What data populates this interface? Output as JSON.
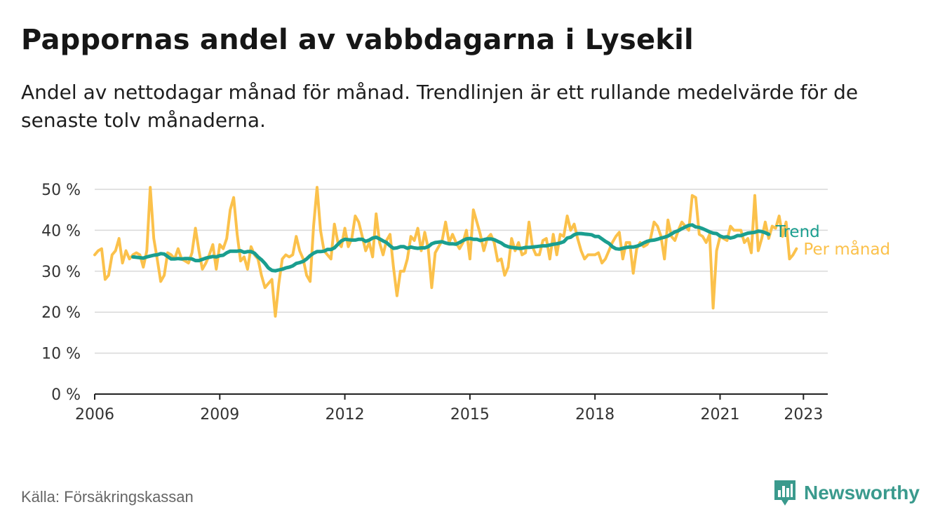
{
  "title": "Pappornas andel av vabbdagarna i Lysekil",
  "subtitle": "Andel av nettodagar månad för månad. Trendlinjen är ett rullande medelvärde för de senaste tolv månaderna.",
  "source": "Källa: Försäkringskassan",
  "brand": {
    "name": "Newsworthy",
    "icon": "newsworthy-logo-icon",
    "color": "#3a9a8d"
  },
  "chart_data": {
    "type": "line",
    "ylim": [
      0,
      50
    ],
    "yticks": [
      0,
      10,
      20,
      30,
      40,
      50
    ],
    "ytick_labels": [
      "0 %",
      "10 %",
      "20 %",
      "30 %",
      "40 %",
      "50 %"
    ],
    "xlim": [
      "2006-01",
      "2023-08"
    ],
    "xticks": [
      "2006-01",
      "2009-01",
      "2012-01",
      "2015-01",
      "2018-01",
      "2021-01",
      "2023-01"
    ],
    "xtick_labels": [
      "2006",
      "2009",
      "2012",
      "2015",
      "2018",
      "2021",
      "2023"
    ],
    "grid": true,
    "legend": "direct-labels-right",
    "series": [
      {
        "name": "Per månad",
        "color": "#fbc14b",
        "start": "2006-01",
        "values": [
          34,
          35,
          35.5,
          28,
          29,
          34,
          35,
          38,
          32,
          35,
          33,
          34,
          34.5,
          34,
          31,
          35,
          50.5,
          38,
          33,
          27.5,
          29,
          34.5,
          34,
          33,
          35.5,
          33,
          32.5,
          32,
          34.5,
          40.5,
          35,
          30.5,
          32,
          34,
          36.5,
          30.5,
          36.5,
          35.5,
          38,
          45,
          48,
          39,
          32.5,
          33.5,
          30.5,
          36,
          34,
          33,
          29,
          26,
          27,
          28,
          19,
          27,
          33,
          34,
          33.5,
          34,
          38.5,
          35,
          33,
          29,
          27.5,
          41,
          50.5,
          40,
          35,
          34,
          33,
          41.5,
          37,
          36,
          40.5,
          36,
          38,
          43.5,
          42,
          38.5,
          35,
          37,
          33.5,
          44,
          37,
          34,
          37.5,
          39,
          31,
          24,
          30,
          30,
          33,
          38.5,
          37.5,
          40.5,
          35,
          39.5,
          35.5,
          26,
          34.5,
          36,
          37.5,
          42,
          37,
          39,
          37,
          35.5,
          37,
          40,
          33,
          45,
          42,
          39,
          35,
          38,
          39,
          37,
          32.5,
          33,
          29,
          31,
          38,
          35,
          37,
          34,
          34.5,
          42,
          36,
          34,
          34,
          37.5,
          38,
          33,
          39,
          34,
          39,
          38.5,
          43.5,
          40,
          41.5,
          38,
          35,
          33,
          34,
          34,
          34,
          34.5,
          32,
          33,
          35,
          37,
          38.5,
          39.5,
          33,
          37,
          37,
          29.5,
          35.5,
          37,
          36,
          36.5,
          38,
          42,
          41,
          38.5,
          33,
          42.5,
          38.5,
          37.5,
          40,
          42,
          41,
          40,
          48.5,
          48,
          39,
          38.5,
          37,
          39,
          21,
          35,
          38.5,
          38,
          37.5,
          41,
          40,
          40,
          40,
          37,
          38,
          34.5,
          48.5,
          35,
          38,
          42,
          38,
          41,
          40.5,
          43.5,
          38.5,
          42,
          33,
          34,
          35.5
        ]
      },
      {
        "name": "Trend",
        "color": "#1a9e8f",
        "start": "2006-12",
        "values": [
          33.5,
          33.4,
          33.3,
          33.2,
          33.5,
          33.7,
          33.9,
          34.0,
          34.3,
          34.2,
          33.6,
          33.0,
          33.0,
          33.1,
          33.0,
          33.1,
          33.1,
          33.0,
          32.6,
          32.6,
          32.9,
          33.2,
          33.4,
          33.6,
          33.5,
          33.8,
          33.9,
          34.5,
          34.9,
          34.9,
          34.9,
          35.0,
          34.6,
          34.8,
          34.8,
          34.4,
          33.5,
          32.8,
          31.9,
          30.8,
          30.2,
          30.1,
          30.3,
          30.5,
          30.8,
          31.0,
          31.3,
          31.9,
          32.1,
          32.4,
          33.0,
          33.8,
          34.4,
          34.8,
          34.8,
          34.9,
          35.3,
          35.3,
          35.7,
          36.6,
          37.4,
          37.8,
          37.7,
          37.6,
          37.6,
          37.8,
          37.8,
          37.3,
          37.6,
          38.1,
          38.3,
          37.9,
          37.4,
          37.0,
          36.2,
          35.6,
          35.7,
          36.0,
          36.0,
          35.6,
          35.9,
          35.7,
          35.6,
          35.7,
          35.7,
          36.0,
          36.7,
          37.0,
          37.1,
          37.2,
          36.9,
          36.7,
          36.7,
          36.6,
          37.0,
          37.5,
          37.9,
          38.0,
          37.8,
          37.8,
          37.5,
          37.7,
          37.9,
          37.9,
          37.7,
          37.3,
          36.9,
          36.3,
          36.0,
          35.8,
          35.7,
          35.6,
          35.6,
          35.8,
          35.8,
          35.9,
          36.0,
          36.1,
          36.2,
          36.2,
          36.4,
          36.6,
          36.7,
          36.9,
          37.2,
          38.1,
          38.3,
          38.9,
          39.2,
          39.2,
          39.1,
          39.0,
          38.9,
          38.5,
          38.5,
          37.9,
          37.3,
          36.8,
          36.0,
          35.5,
          35.4,
          35.6,
          35.8,
          35.9,
          35.9,
          36.1,
          36.4,
          36.9,
          37.3,
          37.5,
          37.6,
          37.8,
          38.1,
          38.3,
          38.6,
          39.1,
          39.6,
          39.9,
          40.4,
          40.8,
          41.2,
          41.3,
          40.8,
          40.7,
          40.4,
          40.0,
          39.6,
          39.3,
          39.2,
          38.6,
          38.3,
          38.4,
          38.1,
          38.3,
          38.7,
          38.7,
          39.0,
          39.3,
          39.4,
          39.5,
          39.8,
          39.7,
          39.4,
          39.0
        ]
      }
    ]
  }
}
